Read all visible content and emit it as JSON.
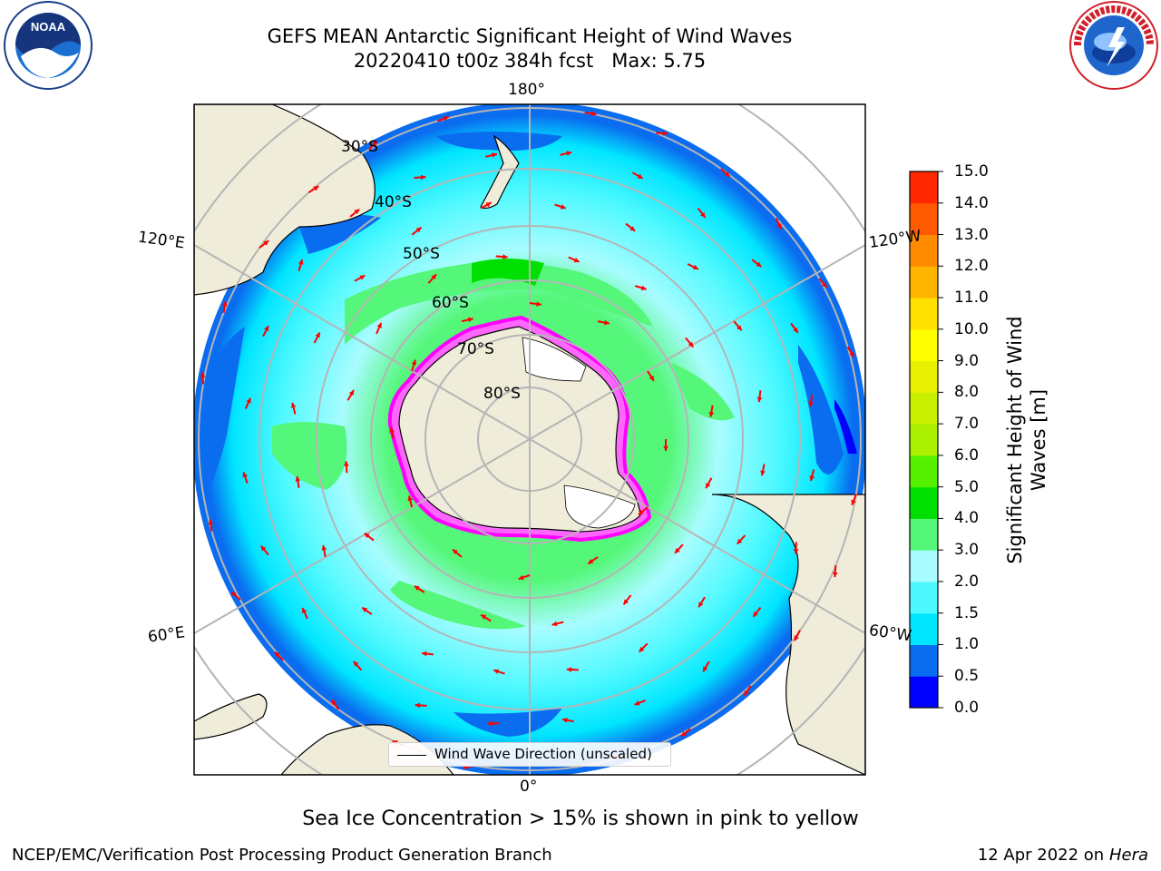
{
  "title": {
    "line1": "GEFS MEAN Antarctic Significant Height of Wind Waves",
    "line2": "20220410 t00z 384h fcst   Max: 5.75"
  },
  "map": {
    "projection": "south-polar-stereographic",
    "longitude_labels": {
      "top": "180°",
      "bottom": "0°",
      "upper_left": "120°E",
      "upper_right": "120°W",
      "lower_left": "60°E",
      "lower_right": "60°W"
    },
    "latitude_labels": [
      "30°S",
      "40°S",
      "50°S",
      "60°S",
      "70°S",
      "80°S"
    ],
    "colors": {
      "land": "#efecda",
      "ice_shelf": "#ffffff",
      "graticule": "#b5b5b5",
      "arrow": "#ff0000",
      "sea_ice_edge": "#ff00ff"
    }
  },
  "legend": {
    "label": "Wind Wave Direction (unscaled)"
  },
  "colorbar": {
    "title": "Significant Height of Wind Waves [m]",
    "ticks": [
      "0.0",
      "0.5",
      "1.0",
      "1.5",
      "2.0",
      "3.0",
      "4.0",
      "5.0",
      "6.0",
      "7.0",
      "8.0",
      "9.0",
      "10.0",
      "11.0",
      "12.0",
      "13.0",
      "14.0",
      "15.0"
    ],
    "colors": [
      "#0000ff",
      "#0a6df0",
      "#00e5ff",
      "#4df9ff",
      "#a8fcff",
      "#55f77a",
      "#00e000",
      "#55f000",
      "#aaf000",
      "#c8f000",
      "#e6f000",
      "#ffff00",
      "#ffe000",
      "#ffb400",
      "#ff8c00",
      "#ff5a00",
      "#ff2800"
    ]
  },
  "footnote": "Sea Ice Concentration > 15% is shown in pink to yellow",
  "credit_left": "NCEP/EMC/Verification Post Processing Product Generation Branch",
  "credit_right_date": "12 Apr 2022 on",
  "credit_right_host": "Hera",
  "logos": {
    "left": "noaa-logo",
    "right": "nws-logo"
  }
}
